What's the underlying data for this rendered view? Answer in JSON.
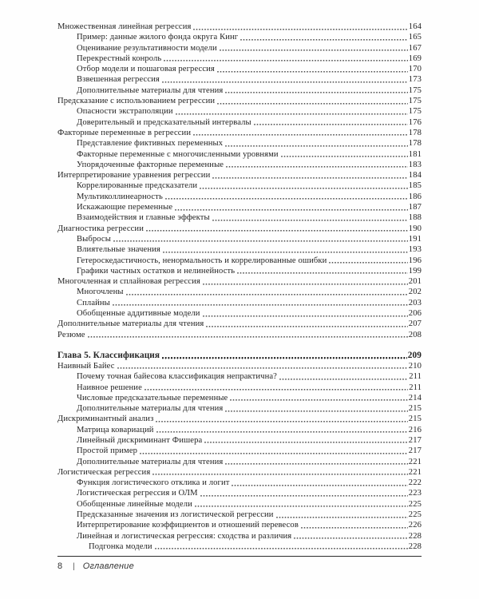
{
  "colors": {
    "text": "#242424",
    "leader_dot": "#4d4d4d",
    "rule": "#2b2b2b",
    "background": "#fefefe"
  },
  "toc": {
    "entries": [
      {
        "label": "Множественная линейная регрессия",
        "page": "164",
        "level": 1
      },
      {
        "label": "Пример: данные жилого фонда округа Кинг",
        "page": "165",
        "level": 2
      },
      {
        "label": "Оценивание результативности модели",
        "page": "167",
        "level": 2
      },
      {
        "label": "Перекрестный конроль",
        "page": "169",
        "level": 2
      },
      {
        "label": "Отбор модели и пошаговая регрессия",
        "page": "170",
        "level": 2
      },
      {
        "label": "Взвешенная регрессия",
        "page": "173",
        "level": 2
      },
      {
        "label": "Дополнительные материалы для чтения",
        "page": "175",
        "level": 2
      },
      {
        "label": "Предсказание с использованием регрессии",
        "page": "175",
        "level": 1
      },
      {
        "label": "Опасности экстраполяции",
        "page": "175",
        "level": 2
      },
      {
        "label": "Доверительный и предсказательный интервалы",
        "page": "176",
        "level": 2
      },
      {
        "label": "Факторные переменные в регрессии",
        "page": "178",
        "level": 1
      },
      {
        "label": "Представление фиктивных переменных",
        "page": "178",
        "level": 2
      },
      {
        "label": "Факторные переменные с многочисленными уровнями",
        "page": "181",
        "level": 2
      },
      {
        "label": "Упорядоченные факторные переменные",
        "page": "183",
        "level": 2
      },
      {
        "label": "Интерпретирование уравнения регрессии",
        "page": "184",
        "level": 1
      },
      {
        "label": "Коррелированные предсказатели",
        "page": "185",
        "level": 2
      },
      {
        "label": "Мультиколлинеарность",
        "page": "186",
        "level": 2
      },
      {
        "label": "Искажающие переменные",
        "page": "187",
        "level": 2
      },
      {
        "label": "Взаимодействия и главные эффекты",
        "page": "188",
        "level": 2
      },
      {
        "label": "Диагностика регрессии",
        "page": "190",
        "level": 1
      },
      {
        "label": "Выбросы",
        "page": "191",
        "level": 2
      },
      {
        "label": "Влиятельные значения",
        "page": "193",
        "level": 2
      },
      {
        "label": "Гетероскедастичность, ненормальность и коррелированные ошибки",
        "page": "196",
        "level": 2
      },
      {
        "label": "Графики частных остатков и нелинейность",
        "page": "199",
        "level": 2
      },
      {
        "label": "Многочленная и сплайновая регрессия",
        "page": "201",
        "level": 1
      },
      {
        "label": "Многочлены",
        "page": "202",
        "level": 2
      },
      {
        "label": "Сплайны",
        "page": "203",
        "level": 2
      },
      {
        "label": "Обобщенные аддитивные модели",
        "page": "206",
        "level": 2
      },
      {
        "label": "Дополнительные материалы для чтения",
        "page": "207",
        "level": 1
      },
      {
        "label": "Резюме",
        "page": "208",
        "level": 1
      },
      {
        "label": "Глава 5. Классификация",
        "page": "209",
        "level": 1,
        "chapter": true
      },
      {
        "label": "Наивный Байес",
        "page": "210",
        "level": 1
      },
      {
        "label": "Почему точная байесова классификация непрактична?",
        "page": "211",
        "level": 2
      },
      {
        "label": "Наивное решение",
        "page": "211",
        "level": 2
      },
      {
        "label": "Числовые предсказательные переменные",
        "page": "214",
        "level": 2
      },
      {
        "label": "Дополнительные материалы для чтения",
        "page": "215",
        "level": 2
      },
      {
        "label": "Дискриминантный анализ",
        "page": "215",
        "level": 1
      },
      {
        "label": "Матрица ковариаций",
        "page": "216",
        "level": 2
      },
      {
        "label": "Линейный дискриминант Фишера",
        "page": "217",
        "level": 2
      },
      {
        "label": "Простой пример",
        "page": "217",
        "level": 2
      },
      {
        "label": "Дополнительные материалы для чтения",
        "page": "221",
        "level": 2
      },
      {
        "label": "Логистическая регрессия",
        "page": "221",
        "level": 1
      },
      {
        "label": "Функция логистического отклика и логит",
        "page": "222",
        "level": 2
      },
      {
        "label": "Логистическая регрессия и ОЛМ",
        "page": "223",
        "level": 2
      },
      {
        "label": "Обобщенные линейные модели",
        "page": "225",
        "level": 2
      },
      {
        "label": "Предсказанные значения из логистической регрессии",
        "page": "225",
        "level": 2
      },
      {
        "label": "Интерпретирование коэффициентов и отношений перевесов",
        "page": "226",
        "level": 2
      },
      {
        "label": "Линейная и логистическая регрессия: сходства и различия",
        "page": "228",
        "level": 2
      },
      {
        "label": "Подгонка модели",
        "page": "228",
        "level": 3
      }
    ]
  },
  "footer": {
    "page_number": "8",
    "separator": "|",
    "section_label": "Оглавление"
  }
}
